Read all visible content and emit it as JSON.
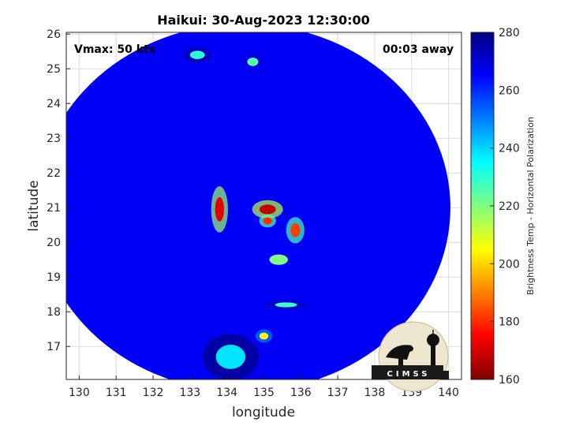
{
  "chart_data": {
    "type": "heatmap",
    "title": "Haikui: 30-Aug-2023 12:30:00",
    "xlabel": "longitude",
    "ylabel": "latitude",
    "xlim": [
      129.65,
      140.35
    ],
    "ylim": [
      16.05,
      26.05
    ],
    "xticks": [
      130,
      131,
      132,
      133,
      134,
      135,
      136,
      137,
      138,
      139,
      140
    ],
    "yticks": [
      17,
      18,
      19,
      20,
      21,
      22,
      23,
      24,
      25,
      26
    ],
    "grid": true,
    "annotations": [
      {
        "text": "Vmax: 50 kts",
        "position": "top-left"
      },
      {
        "text": "00:03 away",
        "position": "top-right"
      }
    ],
    "colorbar": {
      "label": "Brightness Temp - Horizontal Polarization",
      "range": [
        160,
        280
      ],
      "ticks": [
        160,
        180,
        200,
        220,
        240,
        260,
        280
      ],
      "colormap": "jet"
    },
    "swath": {
      "center_lon": 134.45,
      "center_lat": 21.0,
      "radius_lon": 5.6,
      "radius_lat": 5.3
    },
    "background_temperature": 266,
    "features": [
      {
        "name": "convection",
        "lon": 133.8,
        "lat": 20.95,
        "rlon": 0.12,
        "rlat": 0.35,
        "temp": 172
      },
      {
        "name": "convection",
        "lon": 135.1,
        "lat": 20.95,
        "rlon": 0.22,
        "rlat": 0.14,
        "temp": 168
      },
      {
        "name": "convection",
        "lon": 135.1,
        "lat": 20.62,
        "rlon": 0.12,
        "rlat": 0.1,
        "temp": 180
      },
      {
        "name": "convection",
        "lon": 135.85,
        "lat": 20.35,
        "rlon": 0.13,
        "rlat": 0.2,
        "temp": 182
      },
      {
        "name": "convection",
        "lon": 135.4,
        "lat": 19.5,
        "rlon": 0.25,
        "rlat": 0.15,
        "temp": 220
      },
      {
        "name": "convection",
        "lon": 135.6,
        "lat": 18.2,
        "rlon": 0.3,
        "rlat": 0.07,
        "temp": 228
      },
      {
        "name": "convection",
        "lon": 135.0,
        "lat": 17.3,
        "rlon": 0.12,
        "rlat": 0.1,
        "temp": 205
      },
      {
        "name": "convection",
        "lon": 134.1,
        "lat": 16.7,
        "rlon": 0.4,
        "rlat": 0.35,
        "temp": 238
      },
      {
        "name": "convection",
        "lon": 133.2,
        "lat": 25.4,
        "rlon": 0.2,
        "rlat": 0.12,
        "temp": 230
      },
      {
        "name": "convection",
        "lon": 134.7,
        "lat": 25.2,
        "rlon": 0.15,
        "rlat": 0.12,
        "temp": 225
      }
    ]
  },
  "logo": {
    "text": "CIMSS"
  }
}
